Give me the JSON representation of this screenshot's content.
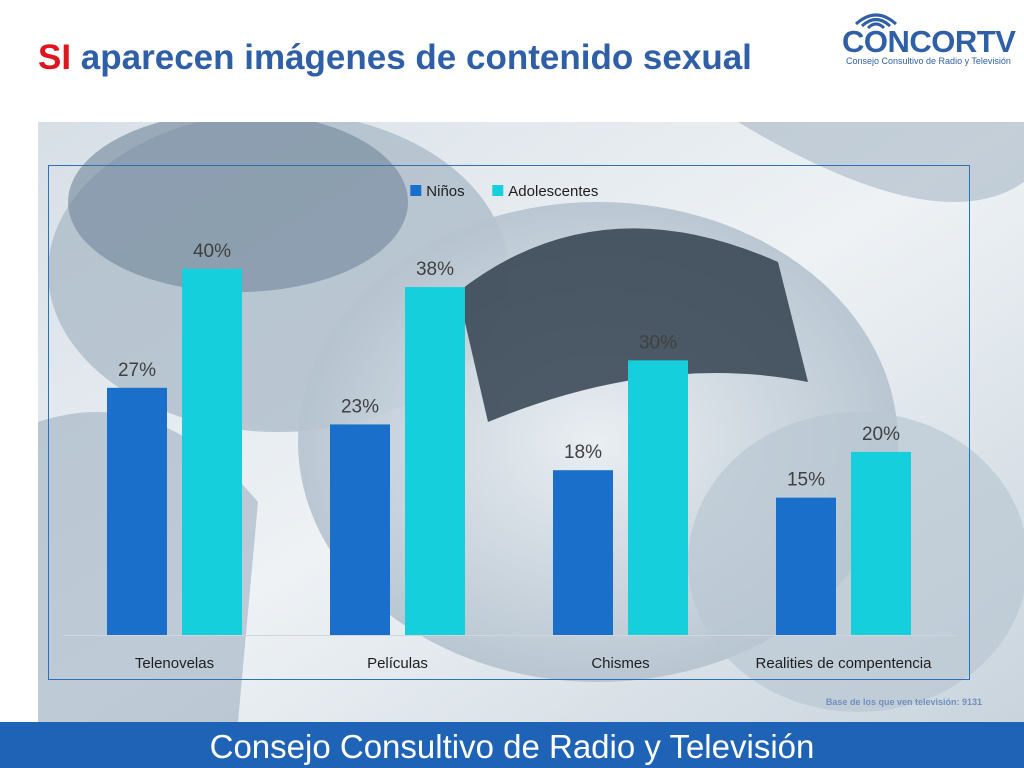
{
  "header": {
    "title_highlight": "SI",
    "title_rest": " aparecen imágenes de contenido sexual"
  },
  "logo": {
    "name": "CONCORTV",
    "tagline": "Consejo Consultivo de Radio y Televisión",
    "icon": "wifi-signal-icon"
  },
  "chart_data": {
    "type": "bar",
    "title": "",
    "categories": [
      "Telenovelas",
      "Películas",
      "Chismes",
      "Realities de compentencia"
    ],
    "series": [
      {
        "name": "Niños",
        "values": [
          27,
          23,
          18,
          15
        ],
        "labels": [
          "27%",
          "23%",
          "18%",
          "15%"
        ],
        "color": "#1a6fca"
      },
      {
        "name": "Adolescentes",
        "values": [
          40,
          38,
          30,
          20
        ],
        "labels": [
          "40%",
          "38%",
          "30%",
          "20%"
        ],
        "color": "#15d0dc"
      }
    ],
    "ylim": [
      0,
      45
    ],
    "legend_position": "top-center",
    "grid": false
  },
  "note": "Base de los que ven televisión: 9131",
  "footer": {
    "text": "Consejo Consultivo de Radio y Televisión",
    "background": "#1f63b6"
  },
  "colors": {
    "title_blue": "#2f5fa7",
    "title_red": "#e0141e"
  }
}
